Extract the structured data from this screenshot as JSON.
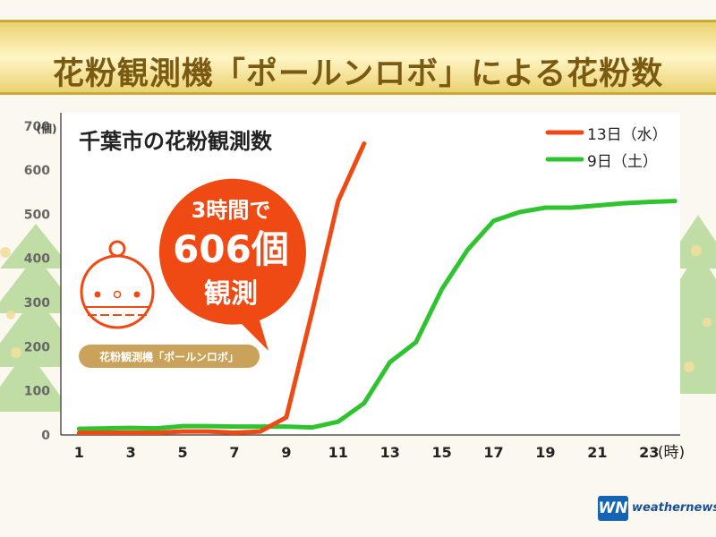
{
  "header": {
    "title": "花粉観測機「ポールンロボ」による花粉数"
  },
  "chart_data": {
    "type": "line",
    "title": "千葉市の花粉観測数",
    "ylabel": "(個)",
    "xlabel": "(時)",
    "x_ticks": [
      1,
      3,
      5,
      7,
      9,
      11,
      13,
      15,
      17,
      19,
      21,
      23
    ],
    "y_ticks": [
      0,
      100,
      200,
      300,
      400,
      500,
      600,
      700
    ],
    "xlim": [
      0.3,
      24.2
    ],
    "ylim": [
      0,
      730
    ],
    "grid": false,
    "legend_position": "top-right",
    "series": [
      {
        "name": "13日（水）",
        "color": "#f04a14",
        "x": [
          1,
          2,
          3,
          4,
          5,
          6,
          7,
          8,
          9,
          10,
          11,
          12
        ],
        "y": [
          5,
          5,
          5,
          5,
          8,
          8,
          5,
          8,
          40,
          280,
          530,
          660
        ]
      },
      {
        "name": "9日（土）",
        "color": "#2fc42f",
        "x": [
          1,
          2,
          3,
          4,
          5,
          6,
          7,
          8,
          9,
          10,
          11,
          12,
          13,
          14,
          15,
          16,
          17,
          18,
          19,
          20,
          21,
          22,
          23,
          24
        ],
        "y": [
          14,
          15,
          16,
          15,
          20,
          20,
          19,
          19,
          19,
          17,
          30,
          72,
          165,
          210,
          330,
          420,
          485,
          505,
          515,
          515,
          520,
          525,
          528,
          530
        ]
      }
    ],
    "annotations": {
      "callout_line1": "3時間で",
      "callout_line2": "606個",
      "callout_line3": "観測",
      "robot_label": "花粉観測機「ポールンロボ」"
    }
  },
  "brand": {
    "logo": "WN",
    "name": "weathernews"
  },
  "colors": {
    "title": "#7a5a12",
    "callout": "#f04a14",
    "robot_label_bg": "#caa25a",
    "chart_bg": "#ffffff",
    "axis_text": "#444444"
  }
}
